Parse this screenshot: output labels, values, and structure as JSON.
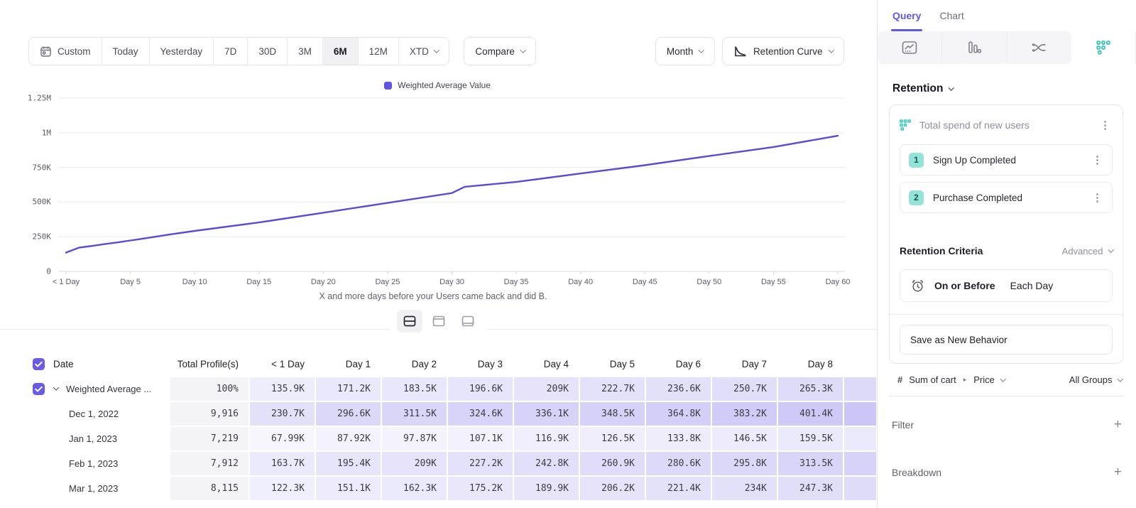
{
  "toolbar": {
    "ranges": [
      "Custom",
      "Today",
      "Yesterday",
      "7D",
      "30D",
      "3M",
      "6M",
      "12M",
      "XTD"
    ],
    "active_range": "6M",
    "compare_label": "Compare",
    "granularity_label": "Month",
    "chart_type_label": "Retention Curve"
  },
  "chart_data": {
    "type": "line",
    "legend": [
      "Weighted Average Value"
    ],
    "series_color": "#5a4bd6",
    "ylim": [
      0,
      1250000
    ],
    "y_tick_labels": [
      "1.25M",
      "1M",
      "750K",
      "500K",
      "250K",
      "0"
    ],
    "y_tick_values": [
      1250000,
      1000000,
      750000,
      500000,
      250000,
      0
    ],
    "x_tick_labels": [
      "< 1 Day",
      "Day 5",
      "Day 10",
      "Day 15",
      "Day 20",
      "Day 25",
      "Day 30",
      "Day 35",
      "Day 40",
      "Day 45",
      "Day 50",
      "Day 55",
      "Day 60"
    ],
    "xlabel": "X and more days before your Users came back and did B.",
    "points": [
      {
        "day": 0,
        "value": 135900
      },
      {
        "day": 1,
        "value": 171200
      },
      {
        "day": 2,
        "value": 183500
      },
      {
        "day": 3,
        "value": 196600
      },
      {
        "day": 4,
        "value": 209000
      },
      {
        "day": 5,
        "value": 222700
      },
      {
        "day": 6,
        "value": 236600
      },
      {
        "day": 7,
        "value": 250700
      },
      {
        "day": 8,
        "value": 265300
      },
      {
        "day": 10,
        "value": 292000
      },
      {
        "day": 15,
        "value": 353000
      },
      {
        "day": 20,
        "value": 423000
      },
      {
        "day": 25,
        "value": 494000
      },
      {
        "day": 30,
        "value": 565000
      },
      {
        "day": 31,
        "value": 610000
      },
      {
        "day": 35,
        "value": 645000
      },
      {
        "day": 40,
        "value": 706000
      },
      {
        "day": 45,
        "value": 766000
      },
      {
        "day": 50,
        "value": 832000
      },
      {
        "day": 55,
        "value": 897000
      },
      {
        "day": 60,
        "value": 978000
      }
    ]
  },
  "table": {
    "columns": [
      "Date",
      "Total Profile(s)",
      "< 1 Day",
      "Day 1",
      "Day 2",
      "Day 3",
      "Day 4",
      "Day 5",
      "Day 6",
      "Day 7",
      "Day 8"
    ],
    "rows": [
      {
        "label": "Weighted Average ...",
        "profiles": "100%",
        "checked": true,
        "values": [
          "135.9K",
          "171.2K",
          "183.5K",
          "196.6K",
          "209K",
          "222.7K",
          "236.6K",
          "250.7K",
          "265.3K"
        ]
      },
      {
        "label": "Dec 1, 2022",
        "profiles": "9,916",
        "values": [
          "230.7K",
          "296.6K",
          "311.5K",
          "324.6K",
          "336.1K",
          "348.5K",
          "364.8K",
          "383.2K",
          "401.4K"
        ]
      },
      {
        "label": "Jan 1, 2023",
        "profiles": "7,219",
        "values": [
          "67.99K",
          "87.92K",
          "97.87K",
          "107.1K",
          "116.9K",
          "126.5K",
          "133.8K",
          "146.5K",
          "159.5K"
        ]
      },
      {
        "label": "Feb 1, 2023",
        "profiles": "7,912",
        "values": [
          "163.7K",
          "195.4K",
          "209K",
          "227.2K",
          "242.8K",
          "260.9K",
          "280.6K",
          "295.8K",
          "313.5K"
        ]
      },
      {
        "label": "Mar 1, 2023",
        "profiles": "8,115",
        "values": [
          "122.3K",
          "151.1K",
          "162.3K",
          "175.2K",
          "189.9K",
          "206.2K",
          "221.4K",
          "234K",
          "247.3K"
        ]
      }
    ]
  },
  "sidebar": {
    "tabs": [
      {
        "label": "Query",
        "active": true
      },
      {
        "label": "Chart",
        "active": false
      }
    ],
    "section_title": "Retention",
    "behavior": {
      "title": "Total spend of new users",
      "steps": [
        {
          "num": "1",
          "label": "Sign Up Completed"
        },
        {
          "num": "2",
          "label": "Purchase Completed"
        }
      ]
    },
    "criteria": {
      "title": "Retention Criteria",
      "mode": "Advanced",
      "operator": "On or Before",
      "frequency": "Each Day"
    },
    "save_label": "Save as New Behavior",
    "metric": {
      "symbol": "#",
      "event": "Sum of cart",
      "property": "Price",
      "group": "All Groups"
    },
    "filter_label": "Filter",
    "breakdown_label": "Breakdown"
  },
  "colors": {
    "accent_purple": "#6156e2",
    "line_purple": "#5a4bd6",
    "cell_tint_rgb": "104,88,230",
    "teal": "#3cc9bb",
    "badge_bg": "#93e3d9"
  }
}
